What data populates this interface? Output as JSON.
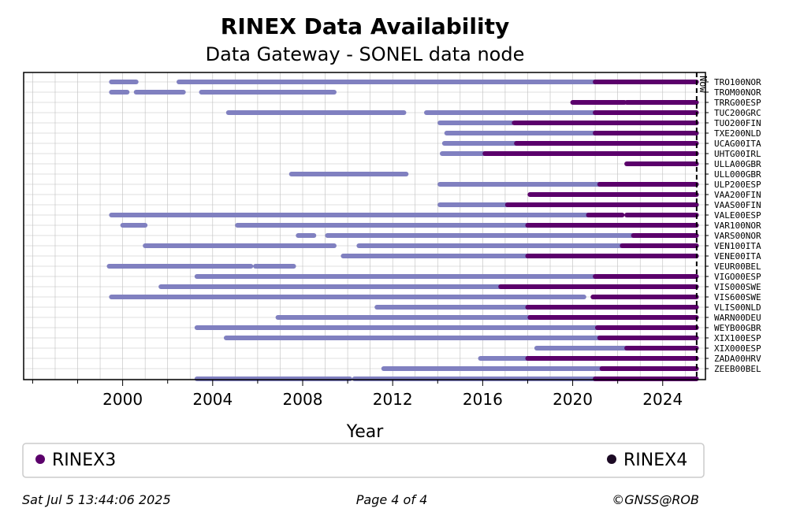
{
  "chart_data": {
    "type": "timeline",
    "title": "RINEX Data Availability",
    "subtitle": "Data Gateway - SONEL data node",
    "xlabel": "Year",
    "xlim": [
      1995.6,
      2025.9
    ],
    "x_ticks": [
      2000,
      2004,
      2008,
      2012,
      2016,
      2020,
      2024
    ],
    "now": 2025.51,
    "now_label": "Now",
    "grid": true,
    "legend": {
      "placement": "bottom",
      "entries": [
        {
          "name": "RINEX3",
          "color": "#5b006b"
        },
        {
          "name": "RINEX4",
          "color": "#1c0a24"
        }
      ]
    },
    "colors": {
      "rinex2": "#8080c0",
      "rinex3": "#5b006b",
      "rinex4": "#1c0a24"
    },
    "stations": [
      {
        "name": "TRO100NOR",
        "r2": [
          [
            1999.5,
            2000.6
          ],
          [
            2002.5,
            2021.0
          ]
        ],
        "r3": [
          [
            2021.0,
            2025.5
          ]
        ]
      },
      {
        "name": "TROM00NOR",
        "r2": [
          [
            1999.5,
            2000.2
          ],
          [
            2000.6,
            2002.7
          ],
          [
            2003.5,
            2009.4
          ]
        ],
        "r3": []
      },
      {
        "name": "TRRG00ESP",
        "r2": [],
        "r3": [
          [
            2020.0,
            2022.3
          ],
          [
            2022.4,
            2025.5
          ]
        ]
      },
      {
        "name": "TUC200GRC",
        "r2": [
          [
            2004.7,
            2012.5
          ],
          [
            2013.5,
            2021.0
          ]
        ],
        "r3": [
          [
            2021.0,
            2025.5
          ]
        ]
      },
      {
        "name": "TUO200FIN",
        "r2": [
          [
            2014.1,
            2017.3
          ]
        ],
        "r3": [
          [
            2017.4,
            2025.5
          ]
        ]
      },
      {
        "name": "TXE200NLD",
        "r2": [
          [
            2014.4,
            2021.0
          ]
        ],
        "r3": [
          [
            2021.0,
            2025.5
          ]
        ]
      },
      {
        "name": "UCAG00ITA",
        "r2": [
          [
            2014.3,
            2017.5
          ]
        ],
        "r3": [
          [
            2017.5,
            2025.5
          ]
        ]
      },
      {
        "name": "UHTG00IRL",
        "r2": [
          [
            2014.2,
            2016.1
          ]
        ],
        "r3": [
          [
            2016.1,
            2025.5
          ]
        ]
      },
      {
        "name": "ULLA00GBR",
        "r2": [],
        "r3": [
          [
            2022.4,
            2025.5
          ]
        ]
      },
      {
        "name": "ULL000GBR",
        "r2": [
          [
            2007.5,
            2012.6
          ]
        ],
        "r3": []
      },
      {
        "name": "ULP200ESP",
        "r2": [
          [
            2014.1,
            2021.2
          ]
        ],
        "r3": [
          [
            2021.2,
            2025.5
          ]
        ]
      },
      {
        "name": "VAA200FIN",
        "r2": [],
        "r3": [
          [
            2018.1,
            2025.5
          ]
        ]
      },
      {
        "name": "VAAS00FIN",
        "r2": [
          [
            2014.1,
            2017.1
          ]
        ],
        "r3": [
          [
            2017.1,
            2025.5
          ]
        ]
      },
      {
        "name": "VALE00ESP",
        "r2": [
          [
            1999.5,
            2020.7
          ]
        ],
        "r3": [
          [
            2020.7,
            2022.2
          ],
          [
            2022.4,
            2025.5
          ]
        ]
      },
      {
        "name": "VAR100NOR",
        "r2": [
          [
            2000.0,
            2001.0
          ],
          [
            2005.1,
            2018.0
          ]
        ],
        "r3": [
          [
            2018.0,
            2025.5
          ]
        ]
      },
      {
        "name": "VARS00NOR",
        "r2": [
          [
            2007.8,
            2008.5
          ],
          [
            2009.1,
            2022.7
          ]
        ],
        "r3": [
          [
            2022.7,
            2025.5
          ]
        ]
      },
      {
        "name": "VEN100ITA",
        "r2": [
          [
            2001.0,
            2009.4
          ],
          [
            2010.5,
            2022.2
          ]
        ],
        "r3": [
          [
            2022.2,
            2025.5
          ]
        ]
      },
      {
        "name": "VENE00ITA",
        "r2": [
          [
            2009.8,
            2018.0
          ]
        ],
        "r3": [
          [
            2018.0,
            2025.5
          ]
        ]
      },
      {
        "name": "VEUR00BEL",
        "r2": [
          [
            1999.4,
            2005.7
          ],
          [
            2005.9,
            2007.6
          ]
        ],
        "r3": []
      },
      {
        "name": "VIGO00ESP",
        "r2": [
          [
            2003.3,
            2021.0
          ]
        ],
        "r3": [
          [
            2021.0,
            2025.5
          ]
        ]
      },
      {
        "name": "VIS000SWE",
        "r2": [
          [
            2001.7,
            2016.8
          ]
        ],
        "r3": [
          [
            2016.8,
            2025.5
          ]
        ]
      },
      {
        "name": "VIS600SWE",
        "r2": [
          [
            1999.5,
            2020.5
          ]
        ],
        "r3": [
          [
            2020.9,
            2025.5
          ]
        ]
      },
      {
        "name": "VLIS00NLD",
        "r2": [
          [
            2011.3,
            2018.0
          ]
        ],
        "r3": [
          [
            2018.0,
            2025.5
          ]
        ]
      },
      {
        "name": "WARN00DEU",
        "r2": [
          [
            2006.9,
            2018.1
          ]
        ],
        "r3": [
          [
            2018.1,
            2025.5
          ]
        ]
      },
      {
        "name": "WEYB00GBR",
        "r2": [
          [
            2003.3,
            2021.1
          ]
        ],
        "r3": [
          [
            2021.1,
            2025.5
          ]
        ]
      },
      {
        "name": "XIX100ESP",
        "r2": [
          [
            2004.6,
            2021.2
          ]
        ],
        "r3": [
          [
            2021.2,
            2025.5
          ]
        ]
      },
      {
        "name": "XIX000ESP",
        "r2": [
          [
            2018.4,
            2022.4
          ]
        ],
        "r3": [
          [
            2022.4,
            2025.5
          ]
        ]
      },
      {
        "name": "ZADA00HRV",
        "r2": [
          [
            2015.9,
            2018.0
          ]
        ],
        "r3": [
          [
            2018.0,
            2025.5
          ]
        ]
      },
      {
        "name": "ZEEB00BEL",
        "r2": [
          [
            2011.6,
            2021.3
          ]
        ],
        "r3": [
          [
            2021.3,
            2025.5
          ]
        ]
      },
      {
        "name": "",
        "r2": [
          [
            2003.3,
            2010.1
          ],
          [
            2010.3,
            2021.0
          ]
        ],
        "r3": [
          [
            2021.0,
            2025.5
          ]
        ]
      }
    ]
  },
  "footer": {
    "timestamp": "Sat Jul  5 13:44:06 2025",
    "page": "Page 4 of 4",
    "credit": "©GNSS@ROB"
  }
}
